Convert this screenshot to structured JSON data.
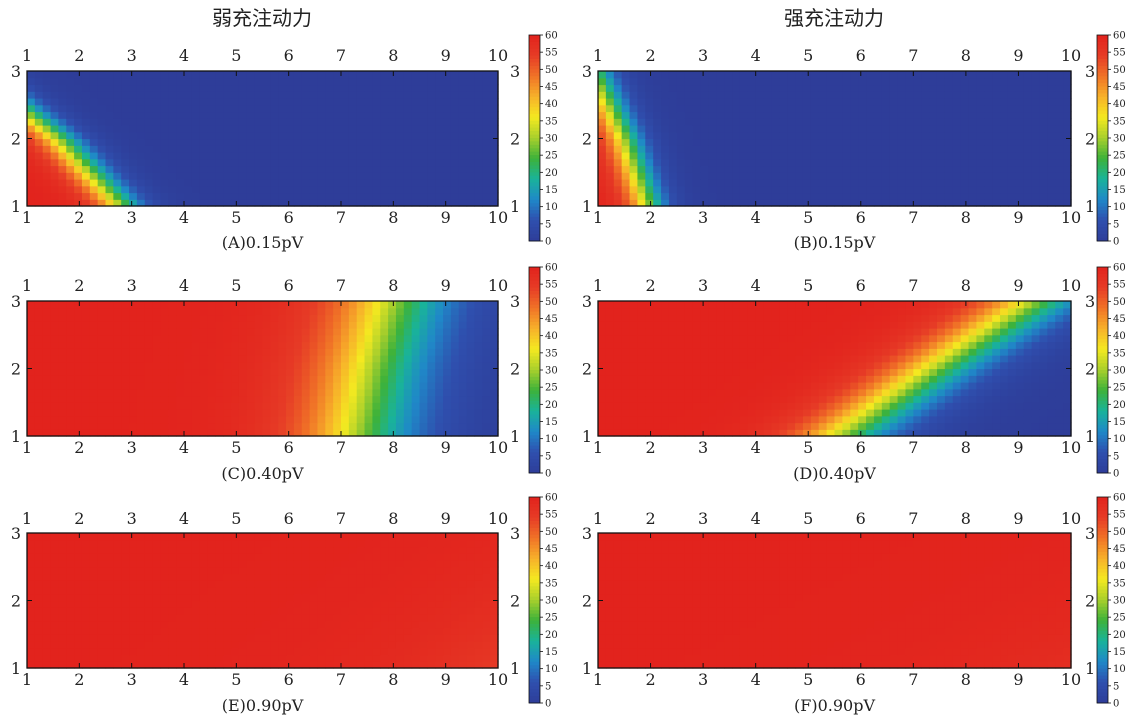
{
  "column_titles": [
    "弱充注动力",
    "强充注动力"
  ],
  "chart_data": [
    {
      "type": "heatmap",
      "caption": "(A)0.15pV",
      "x_ticks": [
        "1",
        "2",
        "3",
        "4",
        "5",
        "6",
        "7",
        "8",
        "9",
        "10"
      ],
      "y_ticks": [
        "1",
        "2",
        "3"
      ],
      "xlim": [
        1,
        10
      ],
      "ylim": [
        1,
        3
      ],
      "front": [
        2.8,
        1.6,
        0.0
      ],
      "width": 1.1
    },
    {
      "type": "heatmap",
      "caption": "(B)0.15pV",
      "x_ticks": [
        "1",
        "2",
        "3",
        "4",
        "5",
        "6",
        "7",
        "8",
        "9",
        "10"
      ],
      "y_ticks": [
        "1",
        "2",
        "3"
      ],
      "xlim": [
        1,
        10
      ],
      "ylim": [
        1,
        3
      ],
      "front": [
        1.95,
        1.5,
        0.9
      ],
      "width": 0.9
    },
    {
      "type": "heatmap",
      "caption": "(C)0.40pV",
      "x_ticks": [
        "1",
        "2",
        "3",
        "4",
        "5",
        "6",
        "7",
        "8",
        "9",
        "10"
      ],
      "y_ticks": [
        "1",
        "2",
        "3"
      ],
      "xlim": [
        1,
        10
      ],
      "ylim": [
        1,
        3
      ],
      "front": [
        7.3,
        7.6,
        8.0
      ],
      "width": 2.8
    },
    {
      "type": "heatmap",
      "caption": "(D)0.40pV",
      "x_ticks": [
        "1",
        "2",
        "3",
        "4",
        "5",
        "6",
        "7",
        "8",
        "9",
        "10"
      ],
      "y_ticks": [
        "1",
        "2",
        "3"
      ],
      "xlim": [
        1,
        10
      ],
      "ylim": [
        1,
        3
      ],
      "front": [
        5.6,
        7.4,
        9.3
      ],
      "width": 2.3
    },
    {
      "type": "heatmap",
      "caption": "(E)0.90pV",
      "x_ticks": [
        "1",
        "2",
        "3",
        "4",
        "5",
        "6",
        "7",
        "8",
        "9",
        "10"
      ],
      "y_ticks": [
        "1",
        "2",
        "3"
      ],
      "xlim": [
        1,
        10
      ],
      "ylim": [
        1,
        3
      ],
      "front": [
        14.2,
        15.8,
        17.5
      ],
      "width": 7.5
    },
    {
      "type": "heatmap",
      "caption": "(F)0.90pV",
      "x_ticks": [
        "1",
        "2",
        "3",
        "4",
        "5",
        "6",
        "7",
        "8",
        "9",
        "10"
      ],
      "y_ticks": [
        "1",
        "2",
        "3"
      ],
      "xlim": [
        1,
        10
      ],
      "ylim": [
        1,
        3
      ],
      "front": [
        17.0,
        19.5,
        22.0
      ],
      "width": 9.5
    }
  ],
  "colorbar": {
    "ticks": [
      "60",
      "55",
      "50",
      "45",
      "40",
      "35",
      "30",
      "25",
      "20",
      "15",
      "10",
      "5",
      "0"
    ],
    "range": [
      0,
      60
    ],
    "colors": [
      "#2e3d99",
      "#2f4fae",
      "#1f88c8",
      "#19b39a",
      "#3db23a",
      "#a8cf2c",
      "#f4e920",
      "#f7b12a",
      "#f07327",
      "#e63b26",
      "#e2231d"
    ]
  }
}
